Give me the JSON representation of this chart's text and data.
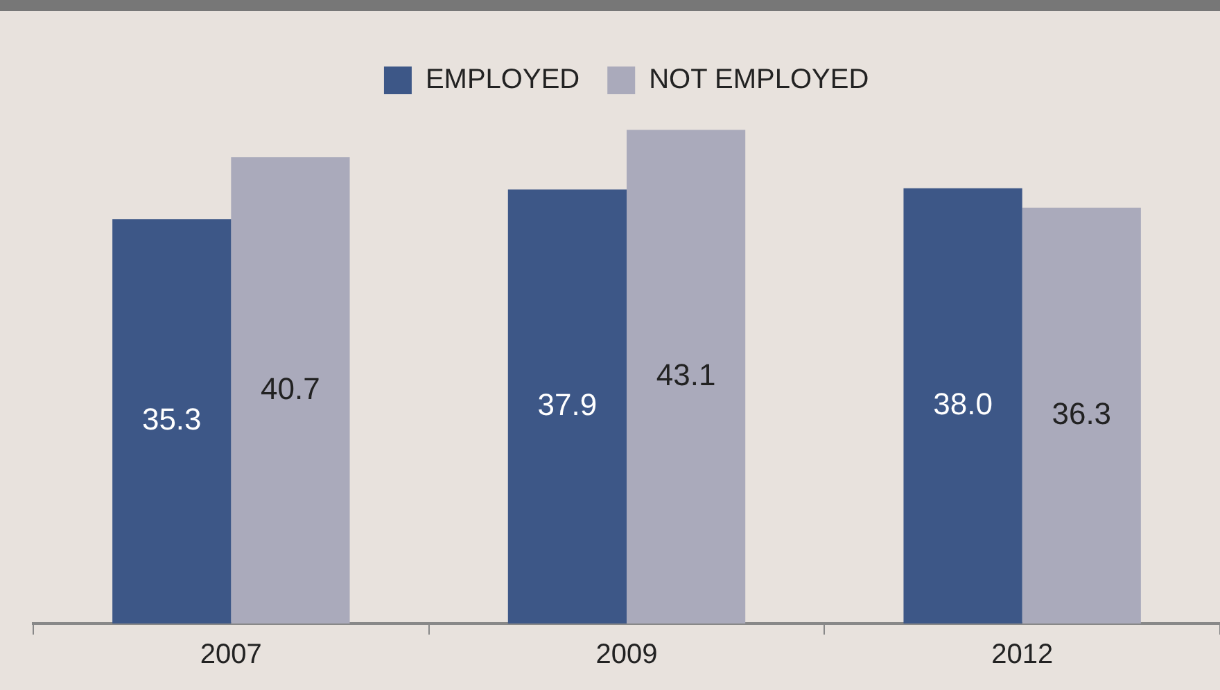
{
  "chart_data": {
    "type": "bar",
    "categories": [
      "2007",
      "2009",
      "2012"
    ],
    "series": [
      {
        "name": "EMPLOYED",
        "color": "#3d5787",
        "values": [
          35.3,
          37.9,
          38.0
        ],
        "value_labels": [
          "35.3",
          "37.9",
          "38.0"
        ]
      },
      {
        "name": "NOT EMPLOYED",
        "color": "#aaaabb",
        "values": [
          40.7,
          43.1,
          36.3
        ],
        "value_labels": [
          "40.7",
          "43.1",
          "36.3"
        ]
      }
    ],
    "legend": "top",
    "grid": false
  }
}
